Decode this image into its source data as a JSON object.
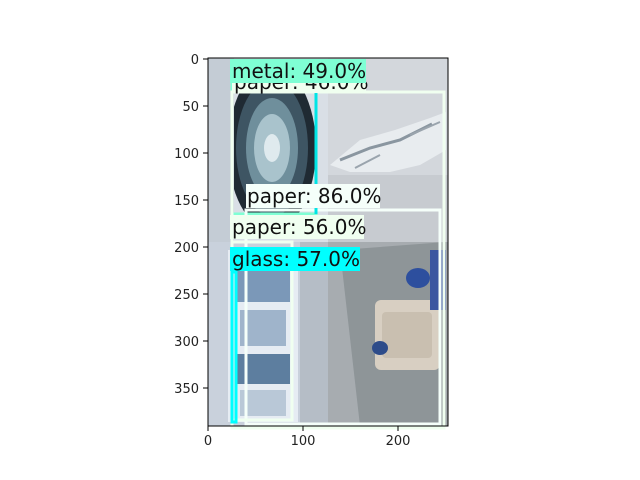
{
  "figure": {
    "x_ticks": [
      "0",
      "100",
      "200"
    ],
    "y_ticks": [
      "0",
      "50",
      "100",
      "150",
      "200",
      "250",
      "300",
      "350"
    ],
    "quadrants": [
      {
        "name": "washing-machine-drum",
        "fill": "#d9dfe6"
      },
      {
        "name": "crumpled-paper-on-wall",
        "fill": "#d3d7dc"
      },
      {
        "name": "magazine-leaflet",
        "fill": "#c9d1dc"
      },
      {
        "name": "sofa-catalog-page",
        "fill": "#a7acb0"
      }
    ],
    "detections": [
      {
        "label": "metal: 49.0%",
        "color": "#7fffd4"
      },
      {
        "label": "paper: 46.0%",
        "color": "#f0fff0"
      },
      {
        "label": "paper: 86.0%",
        "color": "#f5fffa"
      },
      {
        "label": "paper: 56.0%",
        "color": "#f0fff0"
      },
      {
        "label": "glass: 57.0%",
        "color": "#00ffff"
      }
    ]
  }
}
